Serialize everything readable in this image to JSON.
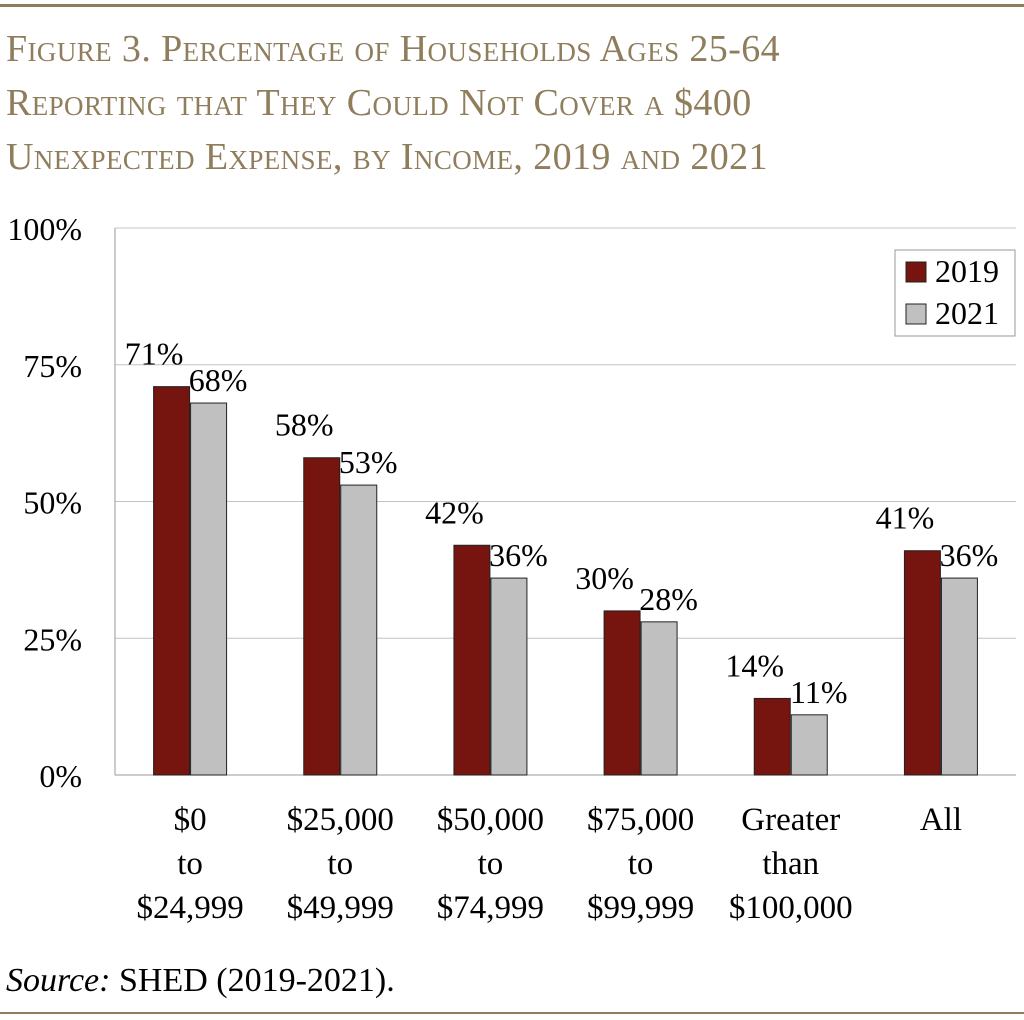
{
  "title": {
    "lines": [
      "Figure 3. Percentage of Households Ages 25-64",
      "Reporting that They Could Not Cover a $400",
      "Unexpected Expense, by Income, 2019 and 2021"
    ]
  },
  "source": {
    "label": "Source:",
    "text": "SHED (2019-2021)."
  },
  "colors": {
    "series_2019": "#76140f",
    "series_2021": "#c0c0c0",
    "title": "#8f7d5c"
  },
  "chart_data": {
    "type": "bar",
    "title": "Figure 3. Percentage of Households Ages 25-64 Reporting that They Could Not Cover a $400 Unexpected Expense, by Income, 2019 and 2021",
    "categories": [
      [
        "$0",
        "to",
        "$24,999"
      ],
      [
        "$25,000",
        "to",
        "$49,999"
      ],
      [
        "$50,000",
        "to",
        "$74,999"
      ],
      [
        "$75,000",
        "to",
        "$99,999"
      ],
      [
        "Greater",
        "than",
        "$100,000"
      ],
      [
        "All"
      ]
    ],
    "series": [
      {
        "name": "2019",
        "values": [
          71,
          58,
          42,
          30,
          14,
          41
        ],
        "labels": [
          "71%",
          "58%",
          "42%",
          "30%",
          "14%",
          "41%"
        ]
      },
      {
        "name": "2021",
        "values": [
          68,
          53,
          36,
          28,
          11,
          36
        ],
        "labels": [
          "68%",
          "53%",
          "36%",
          "28%",
          "11%",
          "36%"
        ]
      }
    ],
    "yticks": [
      "0%",
      "25%",
      "50%",
      "75%",
      "100%"
    ],
    "ytick_values": [
      0,
      25,
      50,
      75,
      100
    ],
    "ylim": [
      0,
      100
    ],
    "xlabel": "",
    "ylabel": "",
    "grid": true,
    "legend": "top-right"
  }
}
